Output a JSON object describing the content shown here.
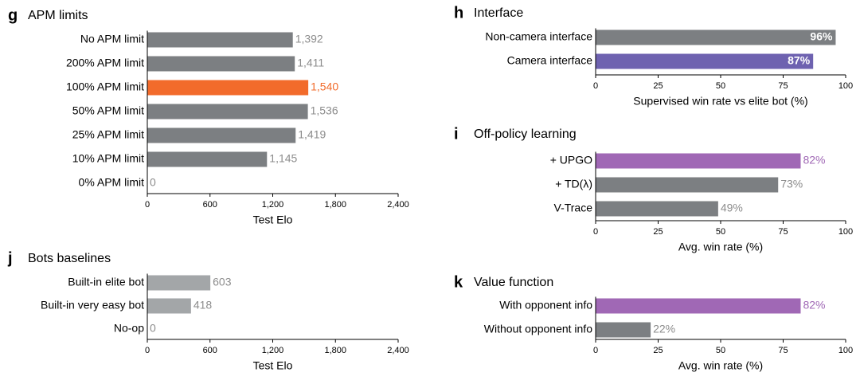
{
  "colors": {
    "gray": "#7c7f82",
    "light_gray": "#a3a6a8",
    "orange": "#f26b2b",
    "purple_blue": "#6e62b0",
    "purple": "#a068b5",
    "label_gray": "#8c8c8c"
  },
  "chart_data": [
    {
      "id": "g",
      "panel_letter": "g",
      "title": "APM limits",
      "type": "bar",
      "orientation": "horizontal",
      "xlabel": "Test Elo",
      "xlim": [
        0,
        2400
      ],
      "xticks": [
        0,
        600,
        1200,
        1800,
        2400
      ],
      "xtick_labels": [
        "0",
        "600",
        "1,200",
        "1,800",
        "2,400"
      ],
      "categories": [
        "No APM limit",
        "200% APM limit",
        "100% APM limit",
        "50% APM limit",
        "25% APM limit",
        "10% APM limit",
        "0% APM limit"
      ],
      "values": [
        1392,
        1411,
        1540,
        1536,
        1419,
        1145,
        0
      ],
      "value_labels": [
        "1,392",
        "1,411",
        "1,540",
        "1,536",
        "1,419",
        "1,145",
        "0"
      ],
      "bar_colors": [
        "gray",
        "gray",
        "orange",
        "gray",
        "gray",
        "gray",
        "gray"
      ],
      "label_colors": [
        "label_gray",
        "label_gray",
        "orange",
        "label_gray",
        "label_gray",
        "label_gray",
        "label_gray"
      ],
      "label_inside": [
        false,
        false,
        false,
        false,
        false,
        false,
        false
      ]
    },
    {
      "id": "j",
      "panel_letter": "j",
      "title": "Bots baselines",
      "type": "bar",
      "orientation": "horizontal",
      "xlabel": "Test Elo",
      "xlim": [
        0,
        2400
      ],
      "xticks": [
        0,
        600,
        1200,
        1800,
        2400
      ],
      "xtick_labels": [
        "0",
        "600",
        "1,200",
        "1,800",
        "2,400"
      ],
      "categories": [
        "Built-in elite bot",
        "Built-in very easy bot",
        "No-op"
      ],
      "values": [
        603,
        418,
        0
      ],
      "value_labels": [
        "603",
        "418",
        "0"
      ],
      "bar_colors": [
        "light_gray",
        "light_gray",
        "light_gray"
      ],
      "label_colors": [
        "label_gray",
        "label_gray",
        "label_gray"
      ],
      "label_inside": [
        false,
        false,
        false
      ]
    },
    {
      "id": "h",
      "panel_letter": "h",
      "title": "Interface",
      "type": "bar",
      "orientation": "horizontal",
      "xlabel": "Supervised win rate vs elite bot (%)",
      "xlim": [
        0,
        100
      ],
      "xticks": [
        0,
        25,
        50,
        75,
        100
      ],
      "xtick_labels": [
        "0",
        "25",
        "50",
        "75",
        "100"
      ],
      "categories": [
        "Non-camera interface",
        "Camera interface"
      ],
      "values": [
        96,
        87
      ],
      "value_labels": [
        "96%",
        "87%"
      ],
      "bar_colors": [
        "gray",
        "purple_blue"
      ],
      "label_colors": [
        "white",
        "white"
      ],
      "label_inside": [
        true,
        true
      ]
    },
    {
      "id": "i",
      "panel_letter": "i",
      "title": "Off-policy learning",
      "type": "bar",
      "orientation": "horizontal",
      "xlabel": "Avg. win rate (%)",
      "xlim": [
        0,
        100
      ],
      "xticks": [
        0,
        25,
        50,
        75,
        100
      ],
      "xtick_labels": [
        "0",
        "25",
        "50",
        "75",
        "100"
      ],
      "categories": [
        "+ UPGO",
        "+ TD(λ)",
        "V-Trace"
      ],
      "values": [
        82,
        73,
        49
      ],
      "value_labels": [
        "82%",
        "73%",
        "49%"
      ],
      "bar_colors": [
        "purple",
        "gray",
        "gray"
      ],
      "label_colors": [
        "purple",
        "label_gray",
        "label_gray"
      ],
      "label_inside": [
        false,
        false,
        false
      ]
    },
    {
      "id": "k",
      "panel_letter": "k",
      "title": "Value function",
      "type": "bar",
      "orientation": "horizontal",
      "xlabel": "Avg. win rate (%)",
      "xlim": [
        0,
        100
      ],
      "xticks": [
        0,
        25,
        50,
        75,
        100
      ],
      "xtick_labels": [
        "0",
        "25",
        "50",
        "75",
        "100"
      ],
      "categories": [
        "With opponent info",
        "Without opponent info"
      ],
      "values": [
        82,
        22
      ],
      "value_labels": [
        "82%",
        "22%"
      ],
      "bar_colors": [
        "purple",
        "gray"
      ],
      "label_colors": [
        "purple",
        "label_gray"
      ],
      "label_inside": [
        false,
        false
      ]
    }
  ]
}
